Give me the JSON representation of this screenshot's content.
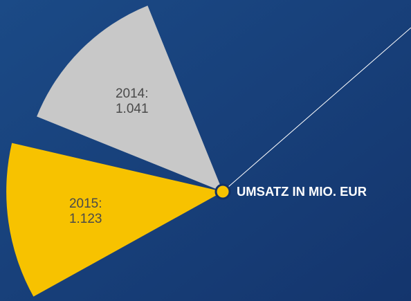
{
  "chart_data": {
    "type": "polar",
    "title": "UMSATZ IN MIO. EUR",
    "categories": [
      "2014:",
      "2015:"
    ],
    "values": [
      1041,
      1123
    ],
    "value_labels": [
      "1.041",
      "1.123"
    ],
    "colors": [
      "#c8c8c8",
      "#f7c200"
    ]
  }
}
